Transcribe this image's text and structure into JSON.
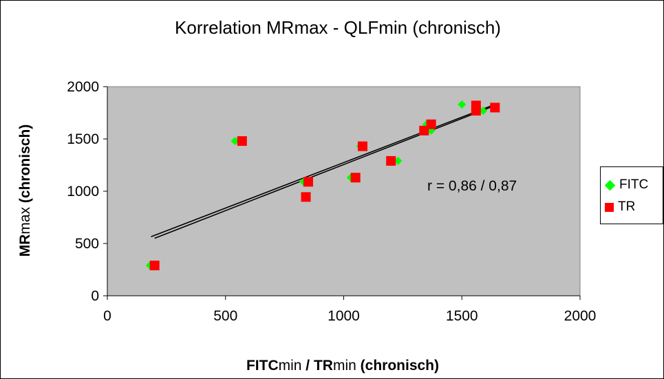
{
  "chart_data": {
    "type": "scatter",
    "title": "Korrelation MRmax - QLFmin (chronisch)",
    "xlabel_parts": [
      "FITC",
      "min",
      " / ",
      "TR",
      "min",
      " (chronisch)"
    ],
    "ylabel_parts": [
      "MR",
      "max",
      " (chronisch)"
    ],
    "xlim": [
      0,
      2000
    ],
    "ylim": [
      0,
      2000
    ],
    "x_ticks": [
      0,
      500,
      1000,
      1500,
      2000
    ],
    "y_ticks": [
      0,
      500,
      1000,
      1500,
      2000
    ],
    "plot_background": "#c0c0c0",
    "gridlines": false,
    "legend_position": "right",
    "annotation": "r = 0,86 / 0,87",
    "series": [
      {
        "name": "FITC",
        "marker": "diamond",
        "color": "#00ff00",
        "points": [
          [
            180,
            290
          ],
          [
            540,
            1480
          ],
          [
            830,
            1090
          ],
          [
            1030,
            1130
          ],
          [
            1070,
            1430
          ],
          [
            1230,
            1290
          ],
          [
            1350,
            1640
          ],
          [
            1370,
            1580
          ],
          [
            1500,
            1830
          ],
          [
            1590,
            1770
          ]
        ],
        "trend": [
          [
            200,
            550
          ],
          [
            1630,
            1810
          ]
        ]
      },
      {
        "name": "TR",
        "marker": "square",
        "color": "#ff0000",
        "points": [
          [
            200,
            290
          ],
          [
            570,
            1480
          ],
          [
            850,
            1090
          ],
          [
            840,
            945
          ],
          [
            1050,
            1130
          ],
          [
            1080,
            1430
          ],
          [
            1200,
            1290
          ],
          [
            1340,
            1580
          ],
          [
            1370,
            1640
          ],
          [
            1560,
            1820
          ],
          [
            1560,
            1770
          ],
          [
            1640,
            1800
          ]
        ],
        "trend": [
          [
            185,
            565
          ],
          [
            1645,
            1835
          ]
        ]
      }
    ]
  }
}
